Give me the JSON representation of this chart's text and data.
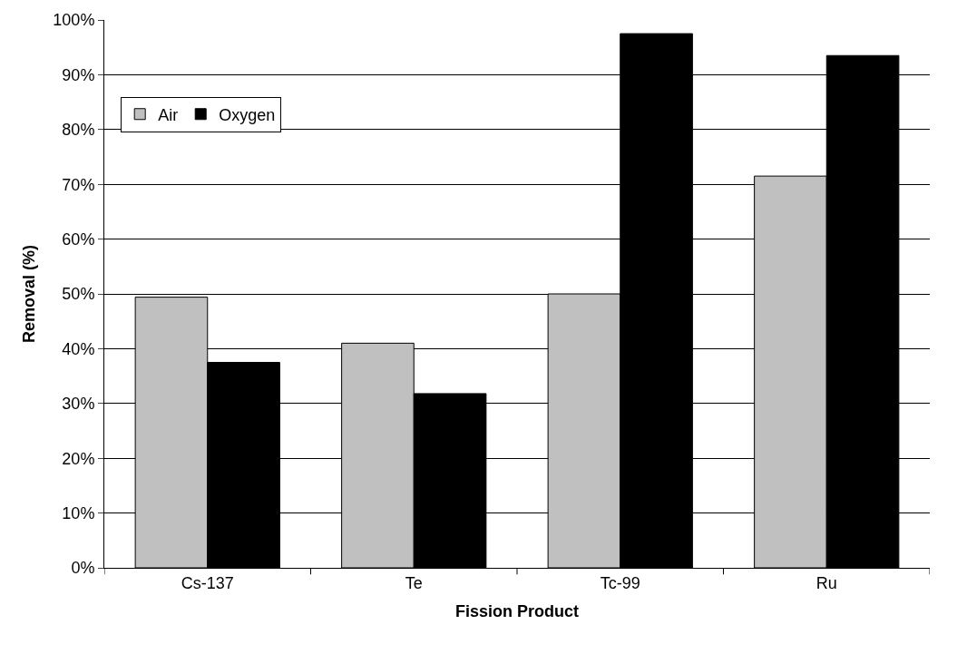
{
  "chart_data": {
    "type": "bar",
    "xlabel": "Fission Product",
    "ylabel": "Removal (%)",
    "categories": [
      "Cs-137",
      "Te",
      "Tc-99",
      "Ru"
    ],
    "series": [
      {
        "name": "Air",
        "color": "#c0c0c0",
        "values": [
          49.4,
          41,
          50,
          71.5
        ]
      },
      {
        "name": "Oxygen",
        "color": "#000000",
        "values": [
          37.5,
          31.8,
          97.5,
          93.5
        ]
      }
    ],
    "ylim": [
      0,
      100
    ],
    "yticks": [
      {
        "value": 0,
        "label": "0%"
      },
      {
        "value": 10,
        "label": "10%"
      },
      {
        "value": 20,
        "label": "20%"
      },
      {
        "value": 30,
        "label": "30%"
      },
      {
        "value": 40,
        "label": "40%"
      },
      {
        "value": 50,
        "label": "50%"
      },
      {
        "value": 60,
        "label": "60%"
      },
      {
        "value": 70,
        "label": "70%"
      },
      {
        "value": 80,
        "label": "80%"
      },
      {
        "value": 90,
        "label": "90%"
      },
      {
        "value": 100,
        "label": "100%"
      }
    ],
    "grid": "y",
    "legend": "top left"
  }
}
